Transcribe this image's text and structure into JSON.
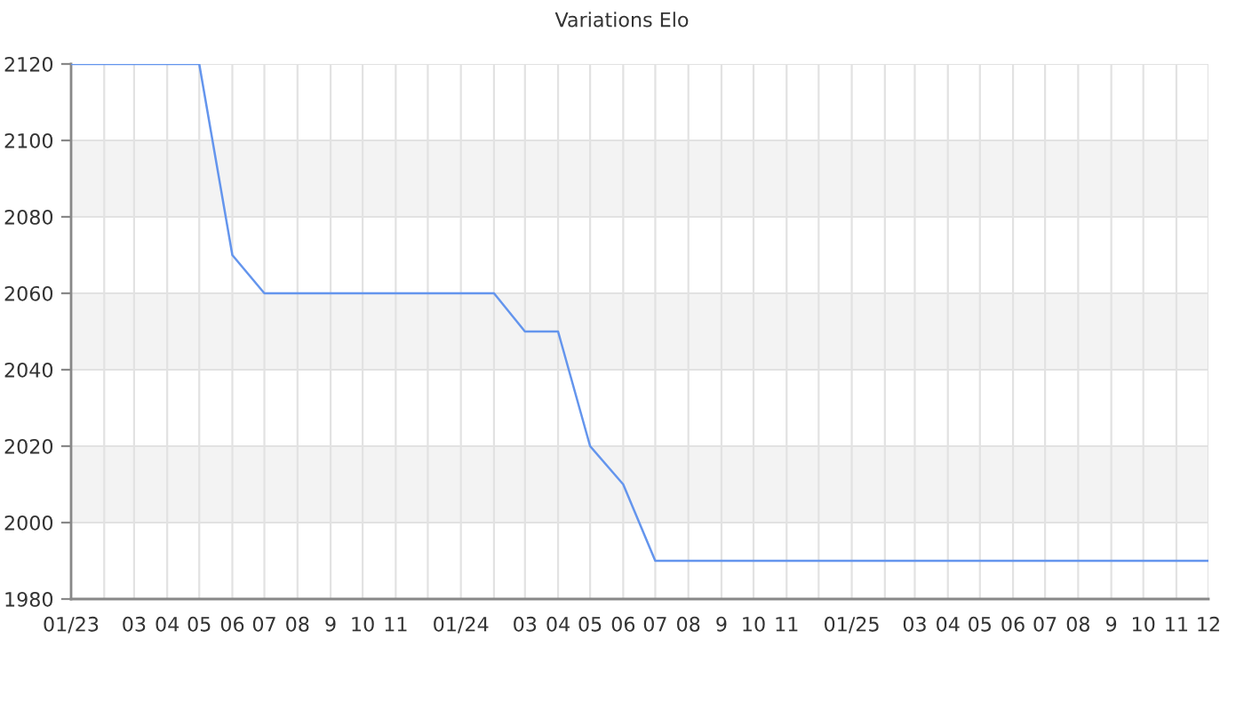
{
  "chart_data": {
    "type": "line",
    "title": "Variations Elo",
    "x": [
      "2023-01",
      "2023-02",
      "2023-03",
      "2023-04",
      "2023-05",
      "2023-06",
      "2023-07",
      "2023-08",
      "2023-09",
      "2023-10",
      "2023-11",
      "2023-12",
      "2024-01",
      "2024-02",
      "2024-03",
      "2024-04",
      "2024-05",
      "2024-06",
      "2024-07",
      "2024-08",
      "2024-09",
      "2024-10",
      "2024-11",
      "2024-12",
      "2025-01",
      "2025-02",
      "2025-03",
      "2025-04",
      "2025-05",
      "2025-06",
      "2025-07",
      "2025-08",
      "2025-09",
      "2025-10",
      "2025-11",
      "2025-12"
    ],
    "series": [
      {
        "color": "#6495ed",
        "values": [
          2120,
          2120,
          2120,
          2120,
          2120,
          2070,
          2060,
          2060,
          2060,
          2060,
          2060,
          2060,
          2060,
          2060,
          2050,
          2050,
          2020,
          2010,
          1990,
          1990,
          1990,
          1990,
          1990,
          1990,
          1990,
          1990,
          1990,
          1990,
          1990,
          1990,
          1990,
          1990,
          1990,
          1990,
          1990,
          1990
        ]
      }
    ],
    "xlim": [
      "2023-01",
      "2025-12"
    ],
    "xticks": [
      {
        "value": "2023-01",
        "label": "01/23"
      },
      {
        "value": "2023-02",
        "label": null
      },
      {
        "value": "2023-03",
        "label": "03"
      },
      {
        "value": "2023-04",
        "label": "04"
      },
      {
        "value": "2023-05",
        "label": "05"
      },
      {
        "value": "2023-06",
        "label": "06"
      },
      {
        "value": "2023-07",
        "label": "07"
      },
      {
        "value": "2023-08",
        "label": "08"
      },
      {
        "value": "2023-09",
        "label": "9"
      },
      {
        "value": "2023-10",
        "label": "10"
      },
      {
        "value": "2023-11",
        "label": "11"
      },
      {
        "value": "2023-12",
        "label": null
      },
      {
        "value": "2024-01",
        "label": "01/24"
      },
      {
        "value": "2024-02",
        "label": null
      },
      {
        "value": "2024-03",
        "label": "03"
      },
      {
        "value": "2024-04",
        "label": "04"
      },
      {
        "value": "2024-05",
        "label": "05"
      },
      {
        "value": "2024-06",
        "label": "06"
      },
      {
        "value": "2024-07",
        "label": "07"
      },
      {
        "value": "2024-08",
        "label": "08"
      },
      {
        "value": "2024-09",
        "label": "9"
      },
      {
        "value": "2024-10",
        "label": "10"
      },
      {
        "value": "2024-11",
        "label": "11"
      },
      {
        "value": "2024-12",
        "label": null
      },
      {
        "value": "2025-01",
        "label": "01/25"
      },
      {
        "value": "2025-02",
        "label": null
      },
      {
        "value": "2025-03",
        "label": "03"
      },
      {
        "value": "2025-04",
        "label": "04"
      },
      {
        "value": "2025-05",
        "label": "05"
      },
      {
        "value": "2025-06",
        "label": "06"
      },
      {
        "value": "2025-07",
        "label": "07"
      },
      {
        "value": "2025-08",
        "label": "08"
      },
      {
        "value": "2025-09",
        "label": "9"
      },
      {
        "value": "2025-10",
        "label": "10"
      },
      {
        "value": "2025-11",
        "label": "11"
      },
      {
        "value": "2025-12",
        "label": "12"
      }
    ],
    "ylim": [
      1980,
      2120
    ],
    "yticks": [
      1980,
      2000,
      2020,
      2040,
      2060,
      2080,
      2100,
      2120
    ],
    "bands": [
      {
        "axis": "y",
        "from": 2000,
        "to": 2020,
        "color": "#f3f3f3"
      },
      {
        "axis": "y",
        "from": 2040,
        "to": 2060,
        "color": "#f3f3f3"
      },
      {
        "axis": "y",
        "from": 2080,
        "to": 2100,
        "color": "#f3f3f3"
      }
    ],
    "grid": true
  }
}
